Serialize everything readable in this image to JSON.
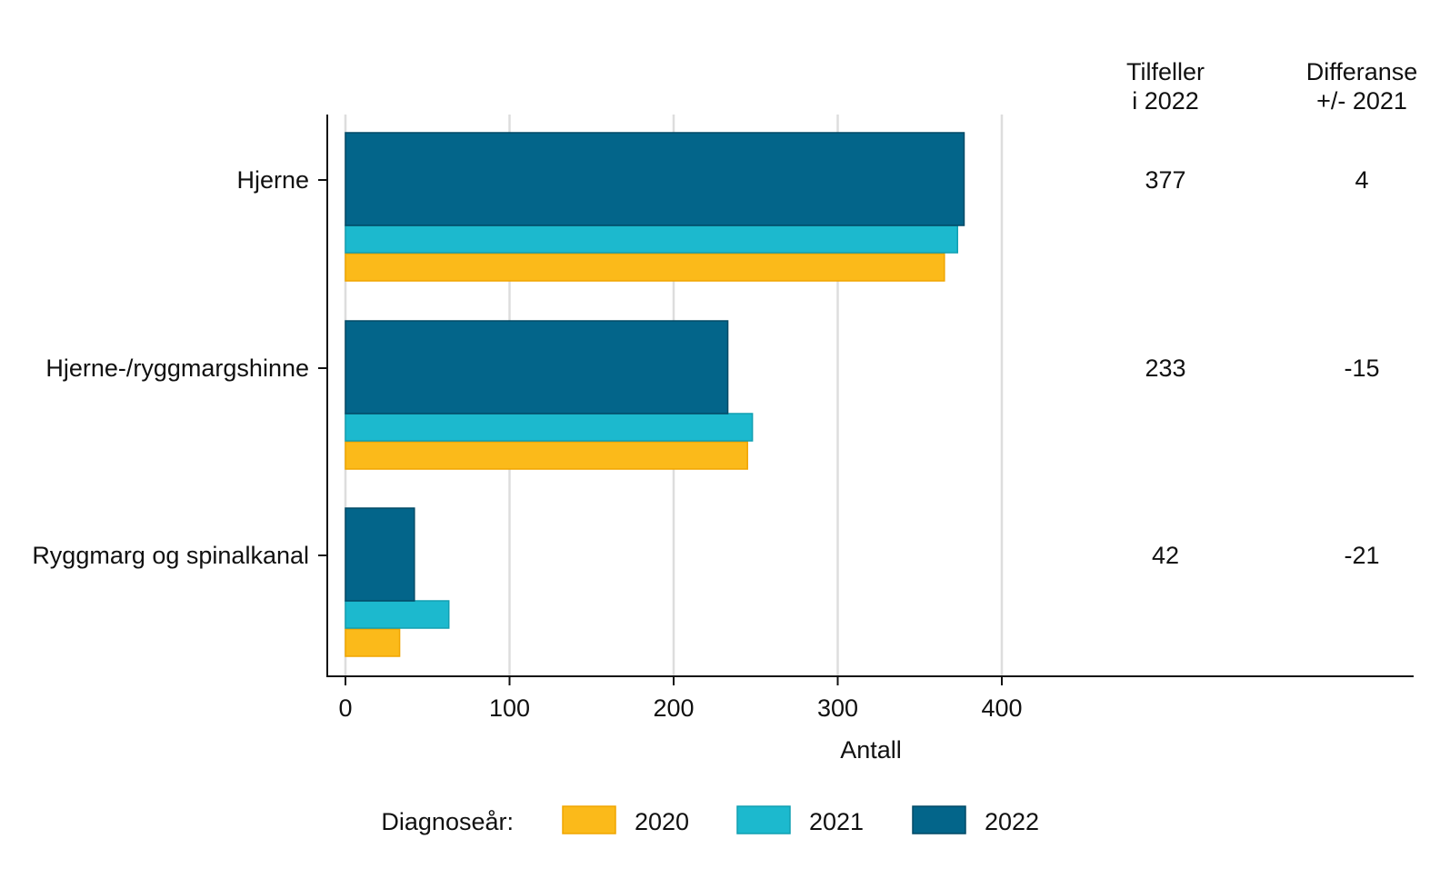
{
  "chart_data": {
    "type": "bar",
    "orientation": "horizontal",
    "categories": [
      "Hjerne",
      "Hjerne-/ryggmargshinne",
      "Ryggmarg og spinalkanal"
    ],
    "series": [
      {
        "name": "2020",
        "values": [
          365,
          245,
          33
        ],
        "color": "#FBBA1A",
        "stroke": "#F0A500"
      },
      {
        "name": "2021",
        "values": [
          373,
          248,
          63
        ],
        "color": "#1CB9CE",
        "stroke": "#119FB2"
      },
      {
        "name": "2022",
        "values": [
          377,
          233,
          42
        ],
        "color": "#03658A",
        "stroke": "#024A66"
      }
    ],
    "xlabel": "Antall",
    "ylabel": "",
    "xlim": [
      0,
      400
    ],
    "xticks": [
      0,
      100,
      200,
      300,
      400
    ],
    "grid": true,
    "legend": {
      "title": "Diagnoseår:",
      "placement": "bottom",
      "items": [
        "2020",
        "2021",
        "2022"
      ]
    },
    "table_columns": [
      {
        "header_lines": [
          "Tilfeller",
          "i 2022"
        ],
        "values": [
          "377",
          "233",
          "42"
        ]
      },
      {
        "header_lines": [
          "Differanse",
          "+/- 2021"
        ],
        "values": [
          "4",
          "-15",
          "-21"
        ]
      }
    ]
  }
}
